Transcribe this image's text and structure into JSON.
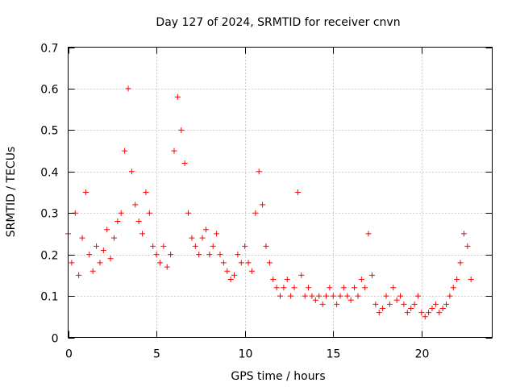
{
  "chart_data": {
    "type": "scatter",
    "title": "Day 127 of 2024, SRMTID for receiver cnvn",
    "xlabel": "GPS time / hours",
    "ylabel": "SRMTID / TECUs",
    "xlim": [
      0,
      24
    ],
    "ylim": [
      0,
      0.7
    ],
    "xticks": [
      0,
      5,
      10,
      15,
      20
    ],
    "xtick_labels": [
      "0",
      "5",
      "10",
      "15",
      "20"
    ],
    "yticks": [
      0,
      0.1,
      0.2,
      0.3,
      0.4,
      0.5,
      0.6,
      0.7
    ],
    "ytick_labels": [
      "0",
      "0.1",
      "0.2",
      "0.3",
      "0.4",
      "0.5",
      "0.6",
      "0.7"
    ],
    "grid": true,
    "marker": "+",
    "color": "#ff0000",
    "series": [
      {
        "name": "SRMTID",
        "x": [
          0.0,
          0.2,
          0.4,
          0.6,
          0.8,
          1.0,
          1.2,
          1.4,
          1.6,
          1.8,
          2.0,
          2.2,
          2.4,
          2.6,
          2.8,
          3.0,
          3.2,
          3.4,
          3.6,
          3.8,
          4.0,
          4.2,
          4.4,
          4.6,
          4.8,
          5.0,
          5.2,
          5.4,
          5.6,
          5.8,
          6.0,
          6.2,
          6.4,
          6.6,
          6.8,
          7.0,
          7.2,
          7.4,
          7.6,
          7.8,
          8.0,
          8.2,
          8.4,
          8.6,
          8.8,
          9.0,
          9.2,
          9.4,
          9.6,
          9.8,
          10.0,
          10.2,
          10.4,
          10.6,
          10.8,
          11.0,
          11.2,
          11.4,
          11.6,
          11.8,
          12.0,
          12.2,
          12.4,
          12.6,
          12.8,
          13.0,
          13.2,
          13.4,
          13.6,
          13.8,
          14.0,
          14.2,
          14.4,
          14.6,
          14.8,
          15.0,
          15.2,
          15.4,
          15.6,
          15.8,
          16.0,
          16.2,
          16.4,
          16.6,
          16.8,
          17.0,
          17.2,
          17.4,
          17.6,
          17.8,
          18.0,
          18.2,
          18.4,
          18.6,
          18.8,
          19.0,
          19.2,
          19.4,
          19.6,
          19.8,
          20.0,
          20.2,
          20.4,
          20.6,
          20.8,
          21.0,
          21.2,
          21.4,
          21.6,
          21.8,
          22.0,
          22.2,
          22.4,
          22.6,
          22.8
        ],
        "y": [
          0.25,
          0.18,
          0.3,
          0.15,
          0.24,
          0.35,
          0.2,
          0.16,
          0.22,
          0.18,
          0.21,
          0.26,
          0.19,
          0.24,
          0.28,
          0.3,
          0.45,
          0.6,
          0.4,
          0.32,
          0.28,
          0.25,
          0.35,
          0.3,
          0.22,
          0.2,
          0.18,
          0.22,
          0.17,
          0.2,
          0.45,
          0.58,
          0.5,
          0.42,
          0.3,
          0.24,
          0.22,
          0.2,
          0.24,
          0.26,
          0.2,
          0.22,
          0.25,
          0.2,
          0.18,
          0.16,
          0.14,
          0.15,
          0.2,
          0.18,
          0.22,
          0.18,
          0.16,
          0.3,
          0.4,
          0.32,
          0.22,
          0.18,
          0.14,
          0.12,
          0.1,
          0.12,
          0.14,
          0.1,
          0.12,
          0.35,
          0.15,
          0.1,
          0.12,
          0.1,
          0.09,
          0.1,
          0.08,
          0.1,
          0.12,
          0.1,
          0.08,
          0.1,
          0.12,
          0.1,
          0.09,
          0.12,
          0.1,
          0.14,
          0.12,
          0.25,
          0.15,
          0.08,
          0.06,
          0.07,
          0.1,
          0.08,
          0.12,
          0.09,
          0.1,
          0.08,
          0.06,
          0.07,
          0.08,
          0.1,
          0.06,
          0.05,
          0.06,
          0.07,
          0.08,
          0.06,
          0.07,
          0.08,
          0.1,
          0.12,
          0.14,
          0.18,
          0.25,
          0.22,
          0.14
        ]
      }
    ]
  }
}
